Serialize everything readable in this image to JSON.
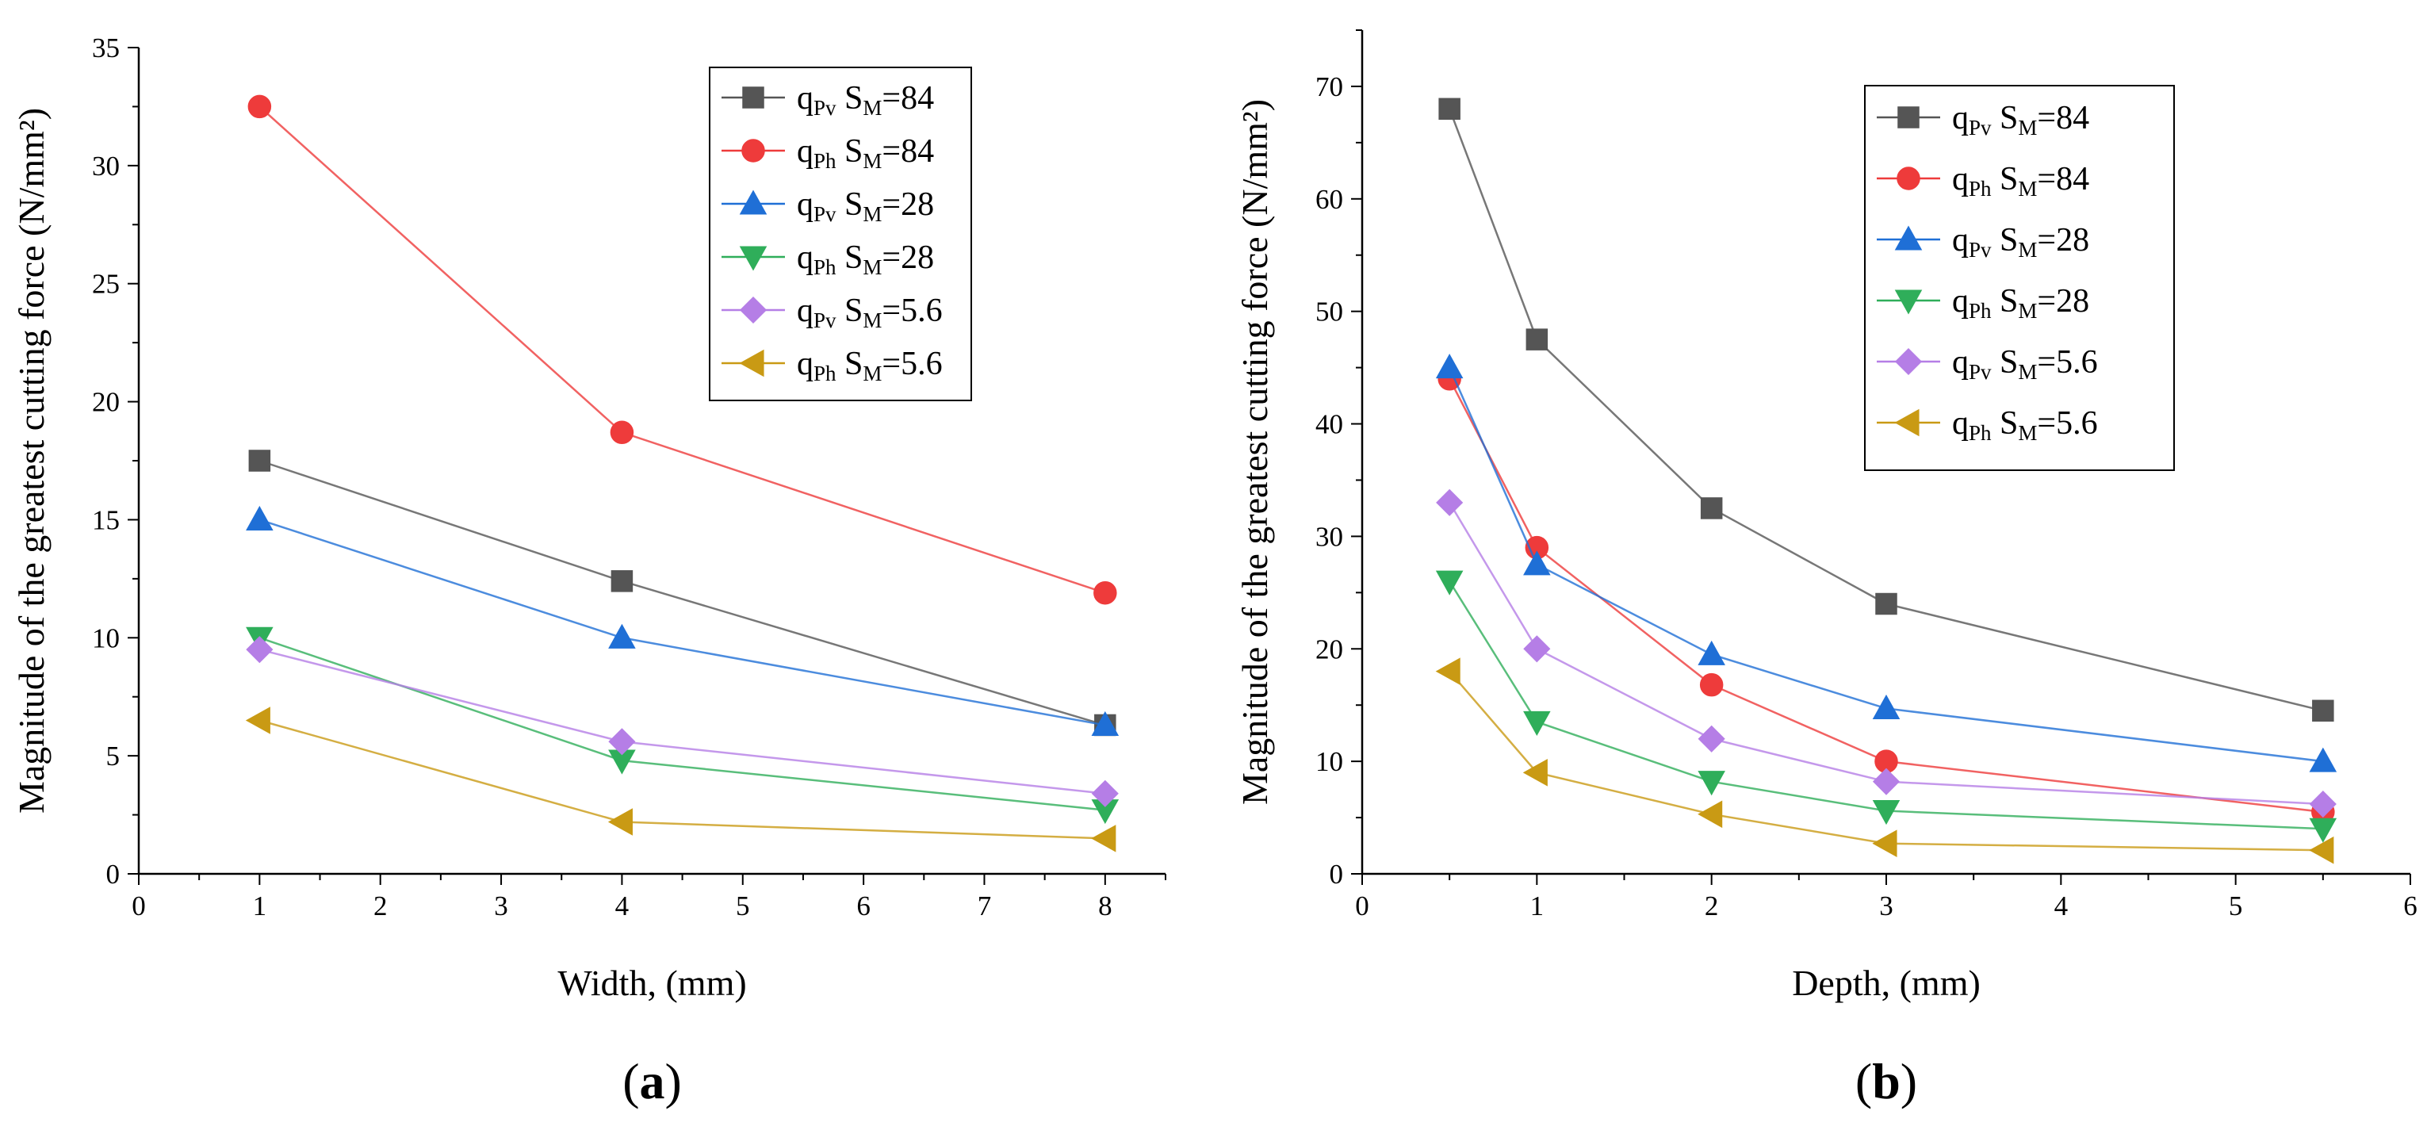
{
  "chart_data": [
    {
      "type": "line",
      "panel_label": "(a)",
      "panel_letter": "a",
      "xlabel": "Width, (mm)",
      "ylabel": "Magnitude of the greatest cutting force  (N/mm²)",
      "xlim": [
        0,
        8.5
      ],
      "ylim": [
        0,
        35
      ],
      "xticks": [
        0,
        1,
        2,
        3,
        4,
        5,
        6,
        7,
        8
      ],
      "yticks": [
        0,
        5,
        10,
        15,
        20,
        25,
        30,
        35
      ],
      "legend_position": "top-right",
      "series": [
        {
          "key": "qpv-84",
          "q": "q",
          "qsub": "Pv",
          "s": "S",
          "ssub": "M",
          "val": "=84",
          "color": "#555555",
          "marker": "square",
          "x": [
            1,
            4,
            8
          ],
          "y": [
            17.5,
            12.4,
            6.3
          ]
        },
        {
          "key": "qph-84",
          "q": "q",
          "qsub": "Ph",
          "s": "S",
          "ssub": "M",
          "val": "=84",
          "color": "#ee3b3b",
          "marker": "circle",
          "x": [
            1,
            4,
            8
          ],
          "y": [
            32.5,
            18.7,
            11.9
          ]
        },
        {
          "key": "qpv-28",
          "q": "q",
          "qsub": "Pv",
          "s": "S",
          "ssub": "M",
          "val": "=28",
          "color": "#1f6fd6",
          "marker": "triangle-up",
          "x": [
            1,
            4,
            8
          ],
          "y": [
            15.0,
            10.0,
            6.3
          ]
        },
        {
          "key": "qph-28",
          "q": "q",
          "qsub": "Ph",
          "s": "S",
          "ssub": "M",
          "val": "=28",
          "color": "#2fae5a",
          "marker": "triangle-down",
          "x": [
            1,
            4,
            8
          ],
          "y": [
            10.0,
            4.8,
            2.7
          ]
        },
        {
          "key": "qpv-5.6",
          "q": "q",
          "qsub": "Pv",
          "s": "S",
          "ssub": "M",
          "val": "=5.6",
          "color": "#b57ee6",
          "marker": "diamond",
          "x": [
            1,
            4,
            8
          ],
          "y": [
            9.5,
            5.6,
            3.4
          ]
        },
        {
          "key": "qph-5.6",
          "q": "q",
          "qsub": "Ph",
          "s": "S",
          "ssub": "M",
          "val": "=5.6",
          "color": "#c99a14",
          "marker": "triangle-left",
          "x": [
            1,
            4,
            8
          ],
          "y": [
            6.5,
            2.2,
            1.5
          ]
        }
      ]
    },
    {
      "type": "line",
      "panel_label": "(b)",
      "panel_letter": "b",
      "xlabel": "Depth, (mm)",
      "ylabel": "Magnitude of the greatest cutting force  (N/mm²)",
      "xlim": [
        0,
        6
      ],
      "ylim": [
        0,
        75
      ],
      "xticks": [
        0,
        1,
        2,
        3,
        4,
        5,
        6
      ],
      "yticks": [
        0,
        10,
        20,
        30,
        40,
        50,
        60,
        70
      ],
      "legend_position": "top-right",
      "series": [
        {
          "key": "qpv-84",
          "q": "q",
          "qsub": "Pv",
          "s": "S",
          "ssub": "M",
          "val": "=84",
          "color": "#555555",
          "marker": "square",
          "x": [
            0.5,
            1,
            2,
            3,
            5.5
          ],
          "y": [
            68,
            47.5,
            32.5,
            24,
            14.5
          ]
        },
        {
          "key": "qph-84",
          "q": "q",
          "qsub": "Ph",
          "s": "S",
          "ssub": "M",
          "val": "=84",
          "color": "#ee3b3b",
          "marker": "circle",
          "x": [
            0.5,
            1,
            2,
            3,
            5.5
          ],
          "y": [
            44,
            29,
            16.8,
            10,
            5.5
          ]
        },
        {
          "key": "qpv-28",
          "q": "q",
          "qsub": "Pv",
          "s": "S",
          "ssub": "M",
          "val": "=28",
          "color": "#1f6fd6",
          "marker": "triangle-up",
          "x": [
            0.5,
            1,
            2,
            3,
            5.5
          ],
          "y": [
            45,
            27.5,
            19.5,
            14.7,
            10
          ]
        },
        {
          "key": "qph-28",
          "q": "q",
          "qsub": "Ph",
          "s": "S",
          "ssub": "M",
          "val": "=28",
          "color": "#2fae5a",
          "marker": "triangle-down",
          "x": [
            0.5,
            1,
            2,
            3,
            5.5
          ],
          "y": [
            26,
            13.5,
            8.2,
            5.6,
            4
          ]
        },
        {
          "key": "qpv-5.6",
          "q": "q",
          "qsub": "Pv",
          "s": "S",
          "ssub": "M",
          "val": "=5.6",
          "color": "#b57ee6",
          "marker": "diamond",
          "x": [
            0.5,
            1,
            2,
            3,
            5.5
          ],
          "y": [
            33,
            20,
            12,
            8.2,
            6.2
          ]
        },
        {
          "key": "qph-5.6",
          "q": "q",
          "qsub": "Ph",
          "s": "S",
          "ssub": "M",
          "val": "=5.6",
          "color": "#c99a14",
          "marker": "triangle-left",
          "x": [
            0.5,
            1,
            2,
            3,
            5.5
          ],
          "y": [
            18,
            9,
            5.3,
            2.7,
            2.1
          ]
        }
      ]
    }
  ]
}
